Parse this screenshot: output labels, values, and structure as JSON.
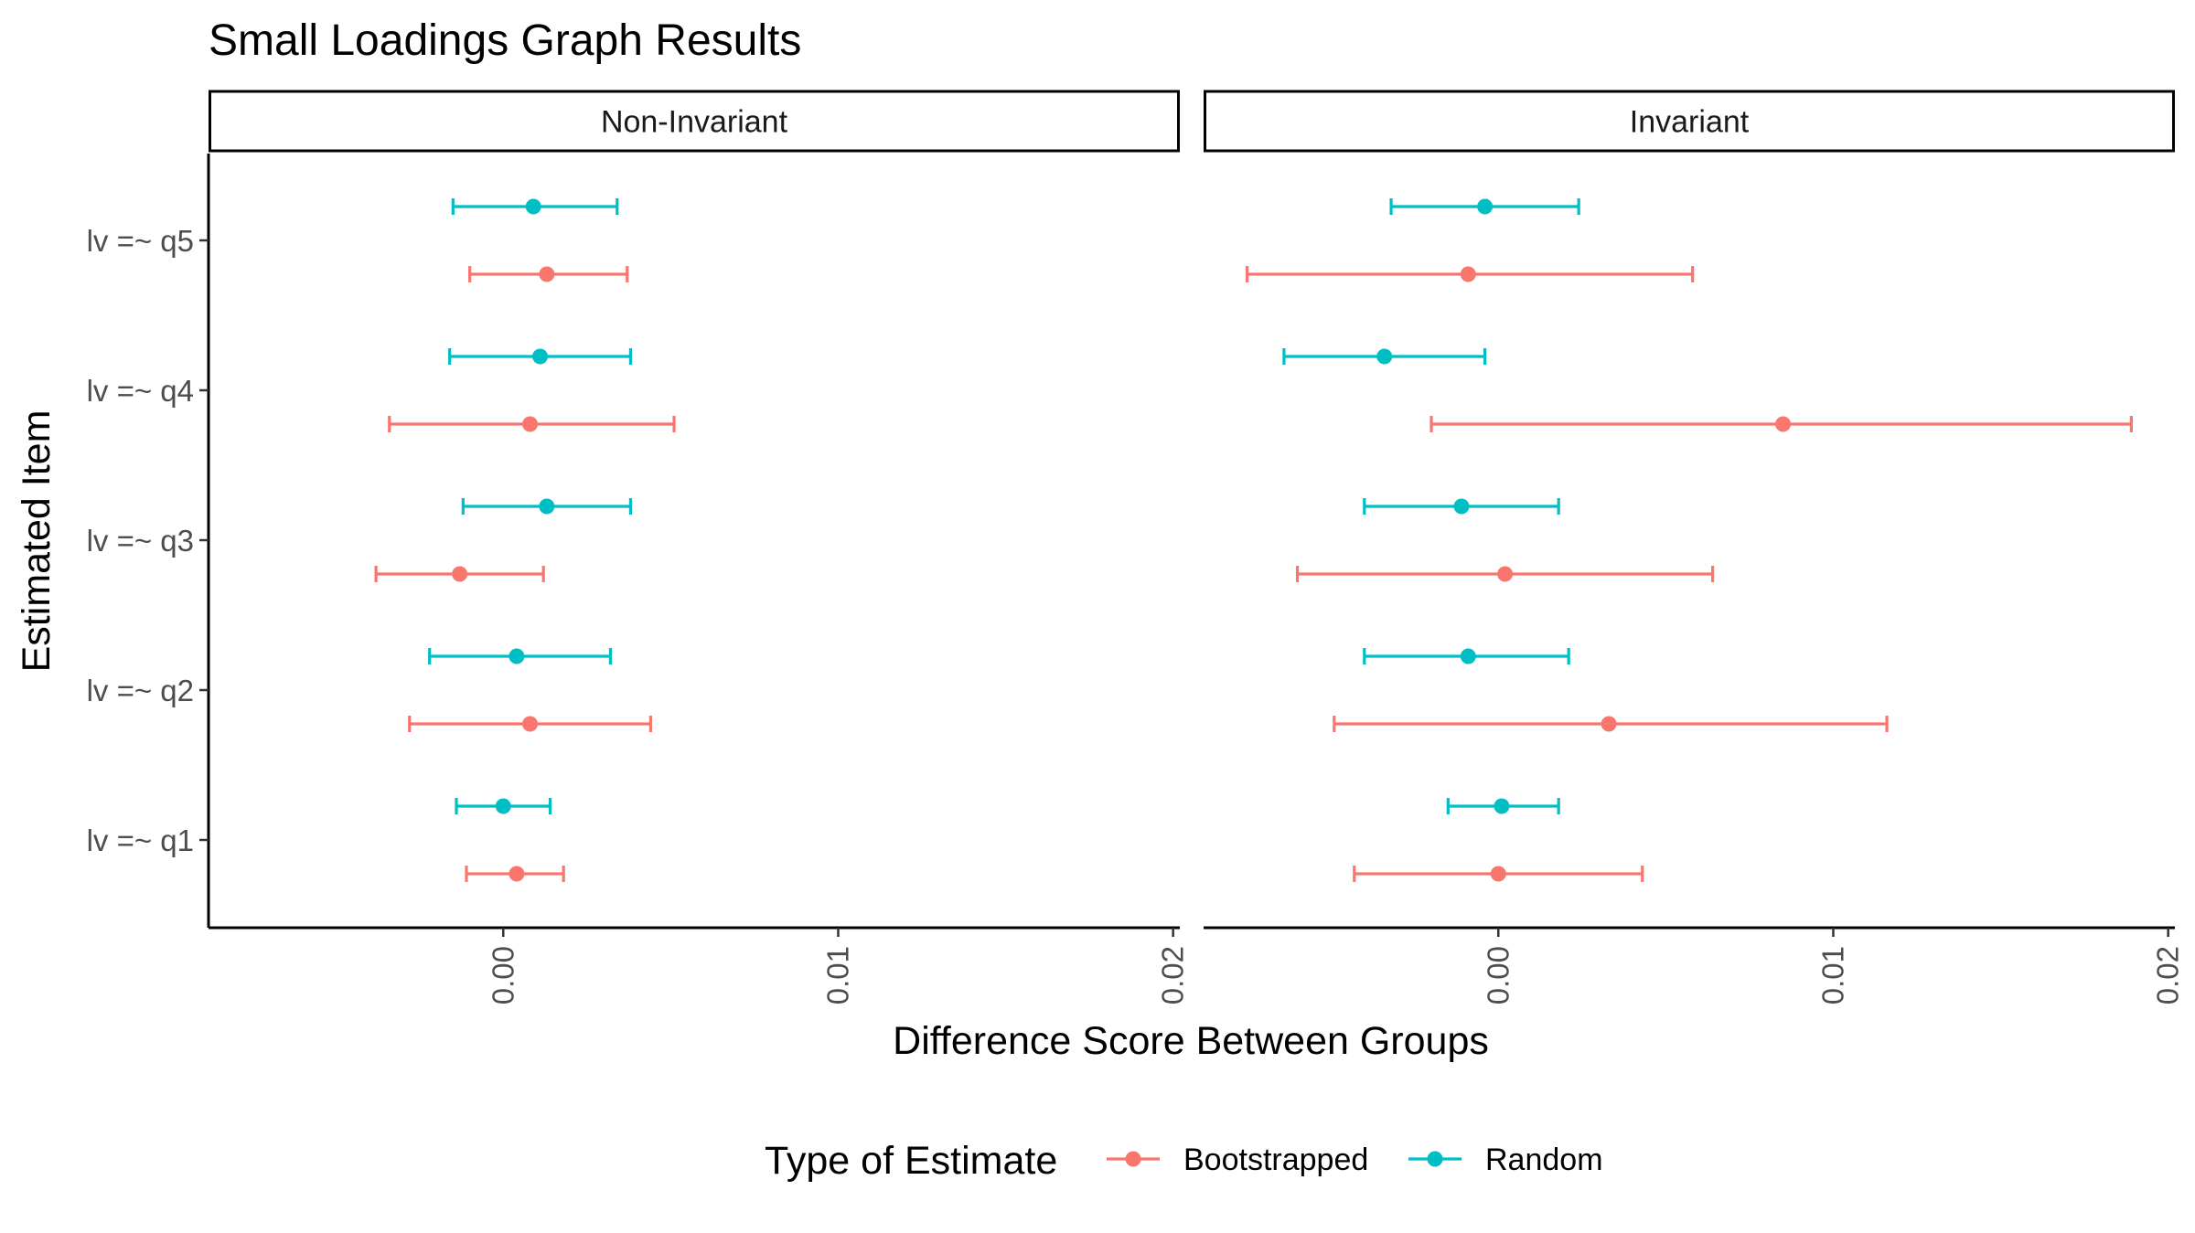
{
  "chart_data": {
    "type": "scatter",
    "title": "Small Loadings Graph Results",
    "xlabel": "Difference Score Between Groups",
    "ylabel": "Estimated Item",
    "xlim": [
      -0.0088,
      0.0202
    ],
    "x_ticks": [
      0.0,
      0.01,
      0.02
    ],
    "x_tick_labels": [
      "0.00",
      "0.01",
      "0.02"
    ],
    "categories": [
      "lv =~ q1",
      "lv =~ q2",
      "lv =~ q3",
      "lv =~ q4",
      "lv =~ q5"
    ],
    "legend": {
      "title": "Type of Estimate",
      "position": "bottom"
    },
    "colors": {
      "Bootstrapped": "#F8766D",
      "Random": "#00BFC4"
    },
    "series": [
      {
        "name": "Bootstrapped"
      },
      {
        "name": "Random"
      }
    ],
    "panels": [
      {
        "label": "Non-Invariant",
        "points": [
          {
            "item": "lv =~ q5",
            "series": "Random",
            "est": 0.0009,
            "lo": -0.0015,
            "hi": 0.0034
          },
          {
            "item": "lv =~ q5",
            "series": "Bootstrapped",
            "est": 0.0013,
            "lo": -0.001,
            "hi": 0.0037
          },
          {
            "item": "lv =~ q4",
            "series": "Random",
            "est": 0.0011,
            "lo": -0.0016,
            "hi": 0.0038
          },
          {
            "item": "lv =~ q4",
            "series": "Bootstrapped",
            "est": 0.0008,
            "lo": -0.0034,
            "hi": 0.0051
          },
          {
            "item": "lv =~ q3",
            "series": "Random",
            "est": 0.0013,
            "lo": -0.0012,
            "hi": 0.0038
          },
          {
            "item": "lv =~ q3",
            "series": "Bootstrapped",
            "est": -0.0013,
            "lo": -0.0038,
            "hi": 0.0012
          },
          {
            "item": "lv =~ q2",
            "series": "Random",
            "est": 0.0004,
            "lo": -0.0022,
            "hi": 0.0032
          },
          {
            "item": "lv =~ q2",
            "series": "Bootstrapped",
            "est": 0.0008,
            "lo": -0.0028,
            "hi": 0.0044
          },
          {
            "item": "lv =~ q1",
            "series": "Random",
            "est": 0.0,
            "lo": -0.0014,
            "hi": 0.0014
          },
          {
            "item": "lv =~ q1",
            "series": "Bootstrapped",
            "est": 0.0004,
            "lo": -0.0011,
            "hi": 0.0018
          }
        ]
      },
      {
        "label": "Invariant",
        "points": [
          {
            "item": "lv =~ q5",
            "series": "Random",
            "est": -0.0004,
            "lo": -0.0032,
            "hi": 0.0024
          },
          {
            "item": "lv =~ q5",
            "series": "Bootstrapped",
            "est": -0.0009,
            "lo": -0.0075,
            "hi": 0.0058
          },
          {
            "item": "lv =~ q4",
            "series": "Random",
            "est": -0.0034,
            "lo": -0.0064,
            "hi": -0.0004
          },
          {
            "item": "lv =~ q4",
            "series": "Bootstrapped",
            "est": 0.0085,
            "lo": -0.002,
            "hi": 0.0189
          },
          {
            "item": "lv =~ q3",
            "series": "Random",
            "est": -0.0011,
            "lo": -0.004,
            "hi": 0.0018
          },
          {
            "item": "lv =~ q3",
            "series": "Bootstrapped",
            "est": 0.0002,
            "lo": -0.006,
            "hi": 0.0064
          },
          {
            "item": "lv =~ q2",
            "series": "Random",
            "est": -0.0009,
            "lo": -0.004,
            "hi": 0.0021
          },
          {
            "item": "lv =~ q2",
            "series": "Bootstrapped",
            "est": 0.0033,
            "lo": -0.0049,
            "hi": 0.0116
          },
          {
            "item": "lv =~ q1",
            "series": "Random",
            "est": 0.0001,
            "lo": -0.0015,
            "hi": 0.0018
          },
          {
            "item": "lv =~ q1",
            "series": "Bootstrapped",
            "est": 0.0,
            "lo": -0.0043,
            "hi": 0.0043
          }
        ]
      }
    ]
  }
}
